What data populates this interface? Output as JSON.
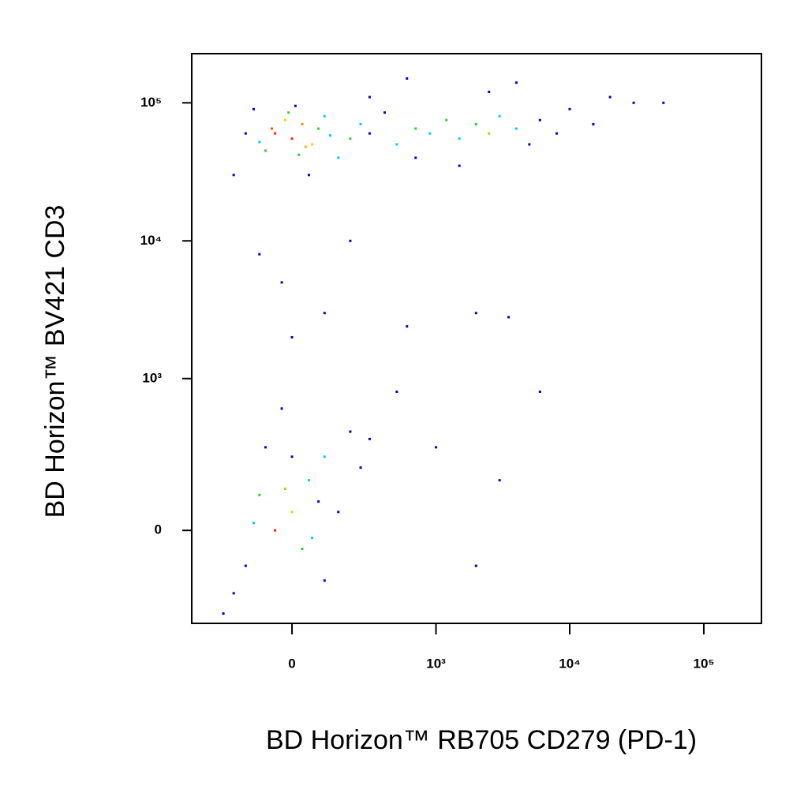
{
  "chart_data": {
    "type": "scatter",
    "x_label": "BD Horizon™ RB705 CD279 (PD-1)",
    "y_label": "BD Horizon™ BV421 CD3",
    "scale": "biexponential",
    "xlim": [
      -460,
      269000
    ],
    "ylim": [
      -360,
      227000
    ],
    "xticks": [
      0,
      {
        "value": 1000,
        "label": "10³"
      },
      {
        "value": 10000,
        "label": "10⁴"
      },
      {
        "value": 100000,
        "label": "10⁵"
      }
    ],
    "yticks": [
      0,
      {
        "value": 1000,
        "label": "10³"
      },
      {
        "value": 10000,
        "label": "10⁴"
      },
      {
        "value": 100000,
        "label": "10⁵"
      }
    ],
    "x": [
      -50,
      0,
      30,
      -20,
      60,
      80,
      -80,
      100,
      -120,
      150,
      10,
      -150,
      200,
      250,
      300,
      400,
      500,
      700,
      900,
      1200,
      1500,
      2000,
      2500,
      3000,
      4000,
      5000,
      6000,
      8000,
      10000,
      15000,
      20000,
      30000,
      50000,
      700,
      1500,
      300,
      -200,
      50,
      2500,
      4000,
      600,
      -60,
      40,
      -10,
      120,
      -100,
      20,
      -30,
      0,
      100,
      -100,
      200,
      2000,
      3500,
      600,
      500,
      6000,
      1000,
      3000,
      2000,
      -50,
      0,
      -100,
      30,
      50,
      -150,
      100,
      -200,
      150,
      -80,
      0,
      200,
      -250,
      250,
      100,
      -30,
      300,
      -20,
      60,
      -120,
      80
    ],
    "y": [
      60000,
      55000,
      70000,
      75000,
      50000,
      65000,
      45000,
      80000,
      90000,
      40000,
      95000,
      60000,
      55000,
      70000,
      60000,
      85000,
      50000,
      65000,
      60000,
      75000,
      55000,
      70000,
      60000,
      80000,
      65000,
      50000,
      75000,
      60000,
      90000,
      70000,
      110000,
      100000,
      100000,
      40000,
      35000,
      110000,
      30000,
      30000,
      120000,
      140000,
      150000,
      65000,
      48000,
      85000,
      58000,
      52000,
      42000,
      5000,
      2000,
      3000,
      8000,
      10000,
      3000,
      2800,
      2400,
      800,
      800,
      300,
      150,
      -100,
      0,
      50,
      100,
      -50,
      150,
      -100,
      250,
      -200,
      50,
      300,
      250,
      400,
      -300,
      200,
      -150,
      600,
      350,
      120,
      -20,
      20,
      80
    ],
    "colors": [
      "#ff2200",
      "#ff2200",
      "#ff8800",
      "#ffcc00",
      "#ffcc00",
      "#33cc33",
      "#33cc33",
      "#00ccff",
      "#0000cc",
      "#00ccff",
      "#0000cc",
      "#0000cc",
      "#33cc33",
      "#00ccff",
      "#0000cc",
      "#0000cc",
      "#00ccff",
      "#33cc33",
      "#00ccff",
      "#33cc33",
      "#00ccff",
      "#33cc33",
      "#99dd00",
      "#00ccff",
      "#00ccff",
      "#0000cc",
      "#0000cc",
      "#0000cc",
      "#0000cc",
      "#0000cc",
      "#0000cc",
      "#0000cc",
      "#0000cc",
      "#0000cc",
      "#0000cc",
      "#0000cc",
      "#0000cc",
      "#0000cc",
      "#0000cc",
      "#0000cc",
      "#0000cc",
      "#ff5500",
      "#ffaa00",
      "#33cc33",
      "#00ccff",
      "#00ccff",
      "#33cc33",
      "#0000cc",
      "#0000cc",
      "#0000cc",
      "#0000cc",
      "#0000cc",
      "#0000cc",
      "#0000cc",
      "#0000cc",
      "#0000cc",
      "#0000cc",
      "#0000cc",
      "#0000cc",
      "#0000cc",
      "#ff2200",
      "#ffcc00",
      "#33cc33",
      "#33cc33",
      "#00ccff",
      "#0000cc",
      "#00ccff",
      "#0000cc",
      "#0000cc",
      "#0000cc",
      "#0000cc",
      "#0000cc",
      "#0000cc",
      "#0000cc",
      "#0000cc",
      "#0000cc",
      "#0000cc",
      "#99dd00",
      "#00ccff",
      "#00ccff",
      "#0000cc"
    ]
  }
}
